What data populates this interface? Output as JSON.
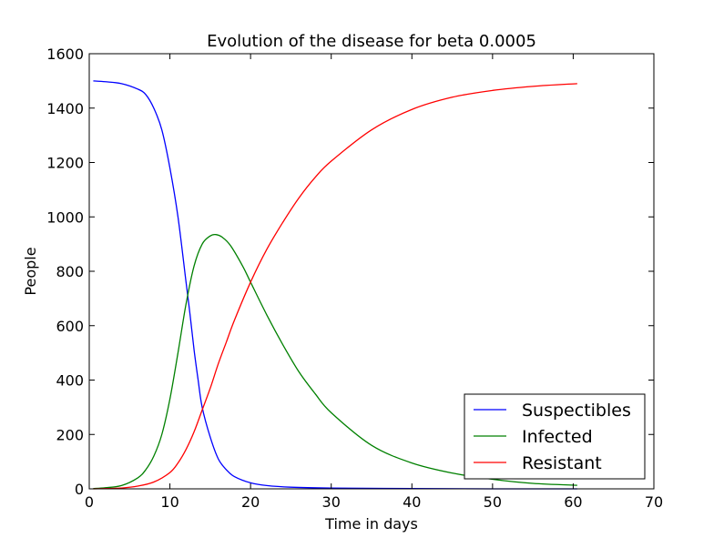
{
  "chart_data": {
    "type": "line",
    "title": "Evolution of the disease for beta 0.0005",
    "xlabel": "Time in days",
    "ylabel": "People",
    "xlim": [
      0,
      70
    ],
    "ylim": [
      0,
      1600
    ],
    "xticks": [
      0,
      10,
      20,
      30,
      40,
      50,
      60,
      70
    ],
    "yticks": [
      0,
      200,
      400,
      600,
      800,
      1000,
      1200,
      1400,
      1600
    ],
    "grid": false,
    "legend_position": "lower-right",
    "series": [
      {
        "name": "Suspectibles",
        "color": "#0000ff",
        "x": [
          0.5,
          2,
          4,
          6,
          7,
          8,
          9,
          10,
          11,
          12,
          12.5,
          13,
          13.5,
          14,
          15,
          16,
          17,
          18,
          20,
          22,
          25,
          30,
          40,
          50,
          60.5
        ],
        "y": [
          1500,
          1497,
          1490,
          1470,
          1450,
          1400,
          1320,
          1180,
          1000,
          760,
          640,
          510,
          400,
          300,
          190,
          110,
          70,
          45,
          22,
          12,
          6,
          3,
          1,
          0,
          0
        ]
      },
      {
        "name": "Infected",
        "color": "#008000",
        "x": [
          0.5,
          2,
          4,
          6,
          7,
          8,
          9,
          10,
          11,
          12,
          13,
          14,
          15,
          15.7,
          16.5,
          17.5,
          19,
          20,
          22,
          24,
          26,
          28,
          30,
          35,
          40,
          45,
          50,
          55,
          60.5
        ],
        "y": [
          1,
          4,
          12,
          40,
          70,
          120,
          200,
          330,
          500,
          680,
          820,
          900,
          930,
          935,
          925,
          895,
          820,
          760,
          640,
          530,
          430,
          350,
          280,
          160,
          95,
          58,
          35,
          20,
          13
        ]
      },
      {
        "name": "Resistant",
        "color": "#ff0000",
        "x": [
          0.5,
          2,
          4,
          6,
          8,
          10,
          11,
          12,
          13,
          14,
          15,
          16,
          17,
          18,
          20,
          22,
          24,
          26,
          28,
          30,
          35,
          40,
          45,
          50,
          55,
          60.5
        ],
        "y": [
          0,
          1,
          3,
          10,
          25,
          60,
          95,
          145,
          210,
          290,
          370,
          460,
          540,
          620,
          760,
          880,
          980,
          1070,
          1145,
          1205,
          1320,
          1395,
          1440,
          1465,
          1480,
          1490
        ]
      }
    ]
  }
}
